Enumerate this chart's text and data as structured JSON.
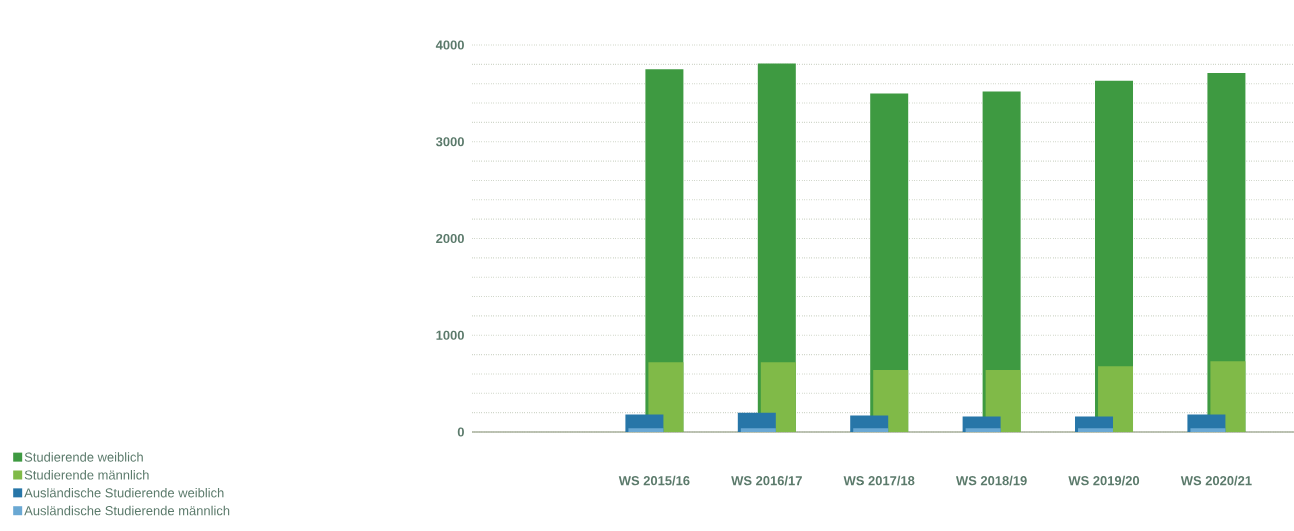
{
  "chart_data": {
    "type": "bar",
    "categories": [
      null,
      "WS 2015/16",
      "WS 2016/17",
      "WS 2017/18",
      "WS 2018/19",
      "WS 2019/20",
      "WS 2020/21"
    ],
    "series": [
      {
        "name": "Studierende weiblich",
        "color": "#3e9a41",
        "values": [
          null,
          3750,
          3810,
          3500,
          3520,
          3630,
          3710
        ]
      },
      {
        "name": "Studierende männlich",
        "color": "#80ba48",
        "values": [
          null,
          720,
          720,
          640,
          640,
          680,
          730
        ]
      },
      {
        "name": "Ausländische Studierende weiblich",
        "color": "#2776a8",
        "values": [
          null,
          180,
          200,
          170,
          160,
          160,
          180
        ]
      },
      {
        "name": "Ausländische Studierende männlich",
        "color": "#6aa8d3",
        "values": [
          null,
          40,
          40,
          40,
          40,
          40,
          40
        ]
      }
    ],
    "ylim": [
      0,
      4000
    ],
    "yticks": [
      0,
      {
        "value": 200,
        "label": null
      },
      {
        "value": 400,
        "label": null
      },
      {
        "value": 600,
        "label": null
      },
      {
        "value": 800,
        "label": null
      },
      1000,
      {
        "value": 1200,
        "label": null
      },
      {
        "value": 1400,
        "label": null
      },
      {
        "value": 1600,
        "label": null
      },
      {
        "value": 1800,
        "label": null
      },
      2000,
      {
        "value": 2200,
        "label": null
      },
      {
        "value": 2400,
        "label": null
      },
      {
        "value": 2600,
        "label": null
      },
      {
        "value": 2800,
        "label": null
      },
      3000,
      {
        "value": 3200,
        "label": null
      },
      {
        "value": 3400,
        "label": null
      },
      {
        "value": 3600,
        "label": null
      },
      {
        "value": 3800,
        "label": null
      },
      4000
    ],
    "grid": "y",
    "legend": "bottom left"
  }
}
